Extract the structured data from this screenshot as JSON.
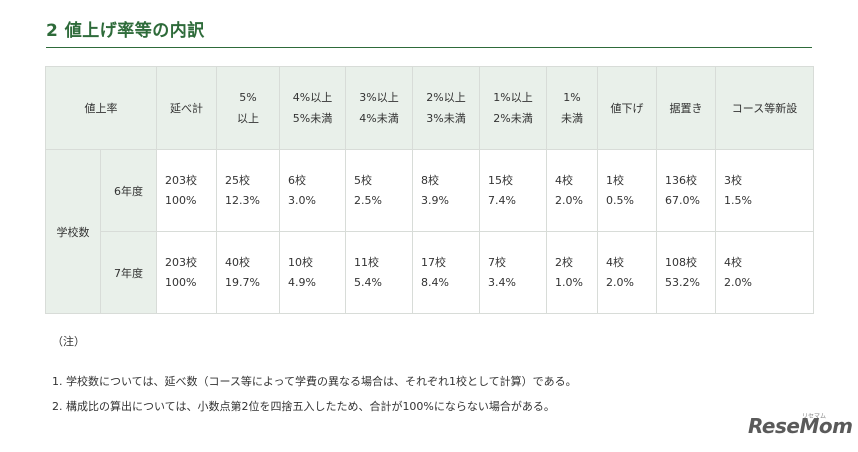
{
  "title": "2 値上げ率等の内訳",
  "table": {
    "header": {
      "rate_label": "値上率",
      "total": "延べ計",
      "c1": [
        "5%",
        "以上"
      ],
      "c2": [
        "4%以上",
        "5%未満"
      ],
      "c3": [
        "3%以上",
        "4%未満"
      ],
      "c4": [
        "2%以上",
        "3%未満"
      ],
      "c5": [
        "1%以上",
        "2%未満"
      ],
      "c6": [
        "1%",
        "未満"
      ],
      "c7": "値下げ",
      "c8": "据置き",
      "c9": "コース等新設"
    },
    "group_label": "学校数",
    "rows": [
      {
        "year": "6年度",
        "cells": [
          [
            "203校",
            "100%"
          ],
          [
            "25校",
            "12.3%"
          ],
          [
            "6校",
            "3.0%"
          ],
          [
            "5校",
            "2.5%"
          ],
          [
            "8校",
            "3.9%"
          ],
          [
            "15校",
            "7.4%"
          ],
          [
            "4校",
            "2.0%"
          ],
          [
            "1校",
            "0.5%"
          ],
          [
            "136校",
            "67.0%"
          ],
          [
            "3校",
            "1.5%"
          ]
        ]
      },
      {
        "year": "7年度",
        "cells": [
          [
            "203校",
            "100%"
          ],
          [
            "40校",
            "19.7%"
          ],
          [
            "10校",
            "4.9%"
          ],
          [
            "11校",
            "5.4%"
          ],
          [
            "17校",
            "8.4%"
          ],
          [
            "7校",
            "3.4%"
          ],
          [
            "2校",
            "1.0%"
          ],
          [
            "4校",
            "2.0%"
          ],
          [
            "108校",
            "53.2%"
          ],
          [
            "4校",
            "2.0%"
          ]
        ]
      }
    ]
  },
  "notes": {
    "heading": "（注）",
    "items": [
      "1. 学校数については、延べ数（コース等によって学費の異なる場合は、それぞれ1校として計算）である。",
      "2. 構成比の算出については、小数点第2位を四捨五入したため、合計が100%にならない場合がある。"
    ]
  },
  "logo": {
    "text": "ReseMom",
    "sub": "リセマム"
  },
  "colors": {
    "accent": "#2e6b3a",
    "header_bg": "#e9f0ea",
    "border": "#d8dcd8"
  }
}
